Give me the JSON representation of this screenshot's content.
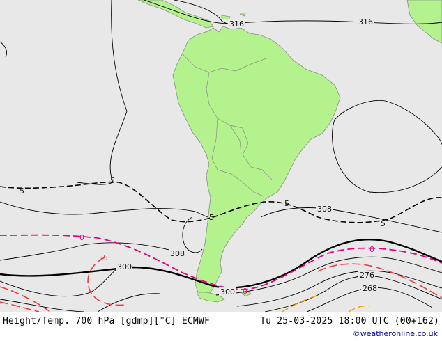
{
  "caption": {
    "product": "Height/Temp. 700 hPa [gdmp][°C] ECMWF",
    "valid_time": "Tu 25-03-2025 18:00 UTC (00+162)"
  },
  "credit": "©weatheronline.co.uk",
  "colors": {
    "ocean": "#e8e8e8",
    "land": "#b3f28c",
    "land_outline": "#8c8c8c",
    "height_contour": "#000000",
    "temp_zero": "#e6007e",
    "temp_minus5": "#f03c3c",
    "temp_minus10": "#f0a000"
  },
  "contour_labels": {
    "h316_west": "316",
    "h316_east": "316",
    "h308_east": "308",
    "h308_west": "308",
    "h300_west": "300",
    "h300_south": "300",
    "h276": "276",
    "h268": "268",
    "t5_west1": "5",
    "t5_west2": "5",
    "t5_mid": "5",
    "t5_east1": "5",
    "t5_east2": "5",
    "t0_west": "0",
    "t0_east": "0",
    "t0_south": "0",
    "tm5_west": "-5"
  }
}
